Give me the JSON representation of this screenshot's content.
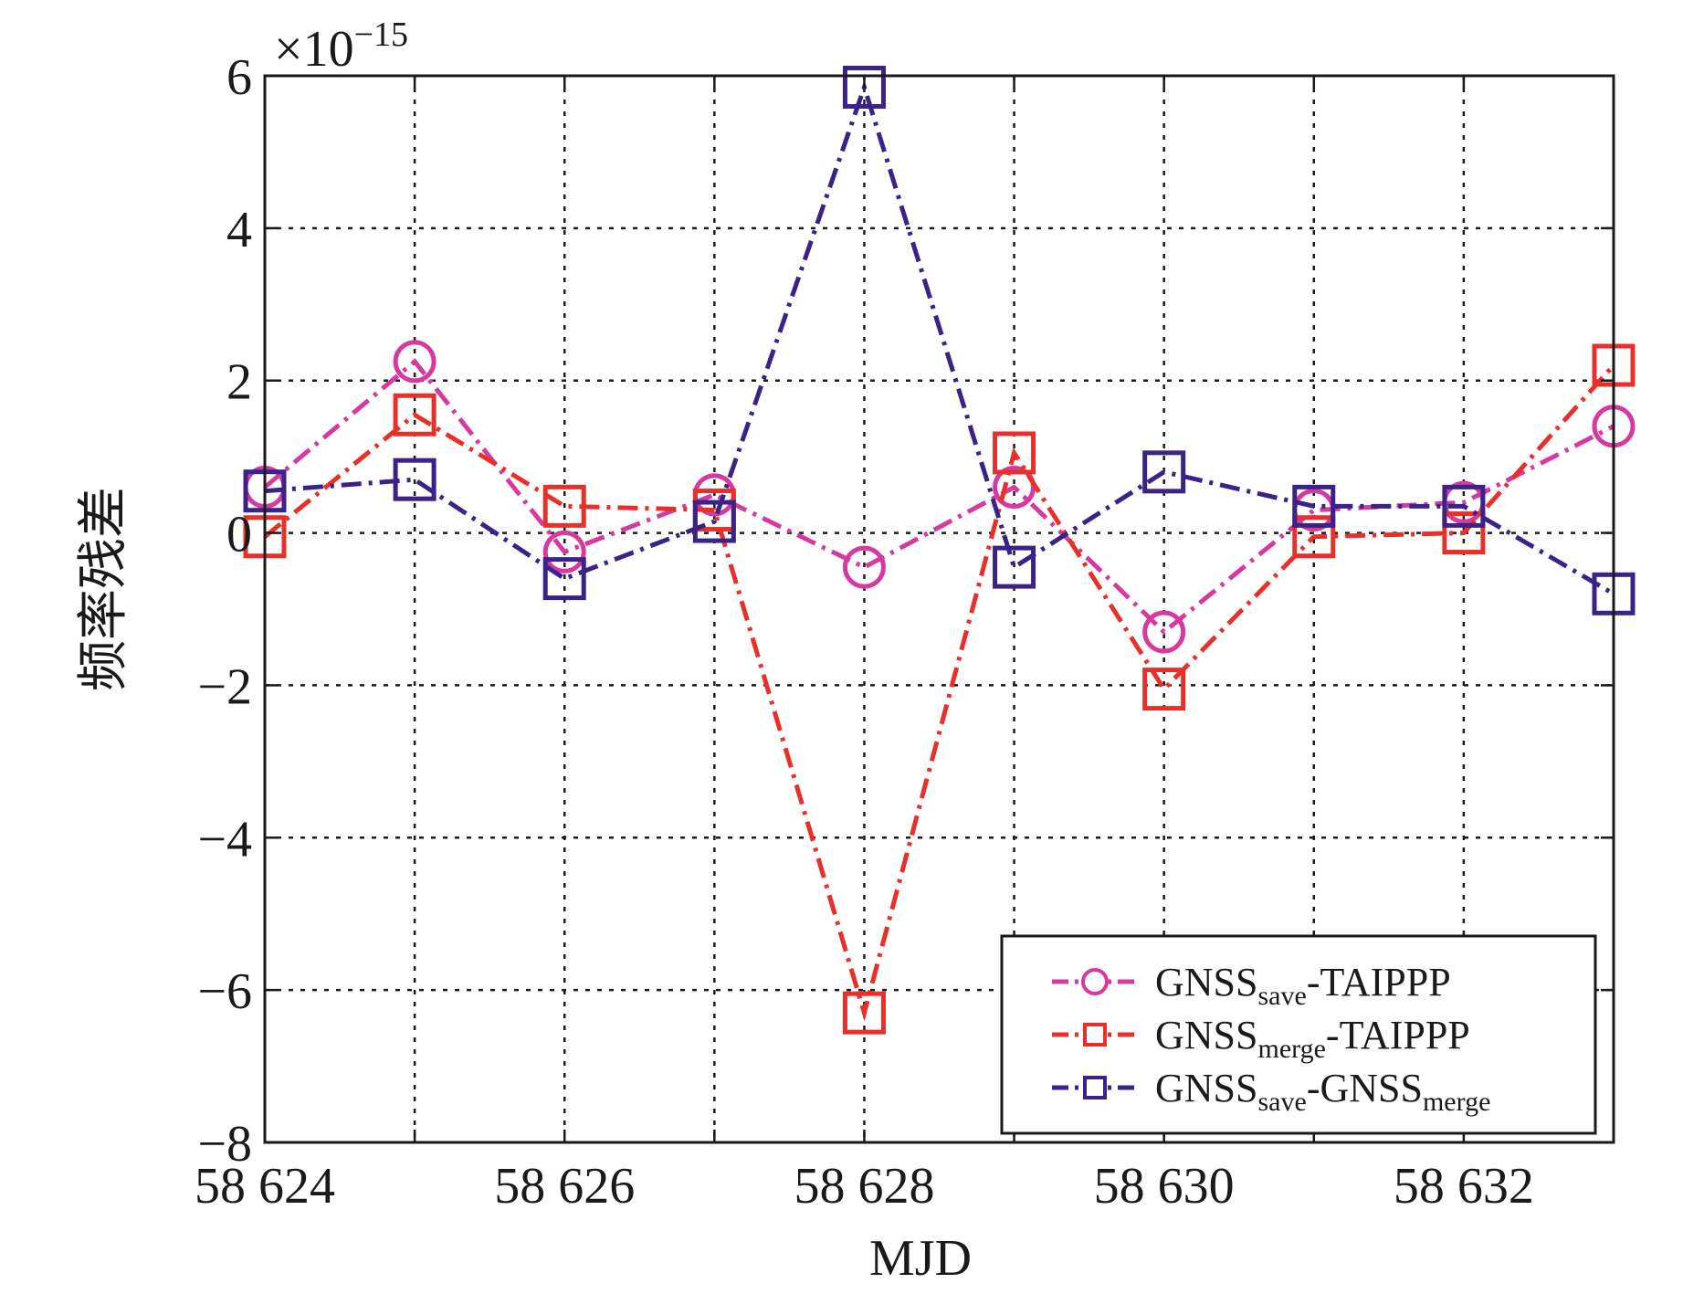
{
  "chart_data": {
    "type": "line",
    "title": "",
    "xlabel": "MJD",
    "ylabel": "频率残差",
    "y_multiplier": "×10",
    "y_multiplier_exp": "−15",
    "xlim": [
      58624,
      58633
    ],
    "ylim": [
      -8,
      6
    ],
    "x_ticks": [
      58624,
      58625,
      58626,
      58627,
      58628,
      58629,
      58630,
      58631,
      58632,
      58633
    ],
    "x_tick_labels": [
      "58 624",
      "",
      "58 626",
      "",
      "58 628",
      "",
      "58 630",
      "",
      "58 632",
      ""
    ],
    "y_ticks": [
      -8,
      -6,
      -4,
      -2,
      0,
      2,
      4,
      6
    ],
    "y_tick_labels": [
      "−8",
      "−6",
      "−4",
      "−2",
      "0",
      "2",
      "4",
      "6"
    ],
    "grid": true,
    "legend_position": "bottom-right",
    "x": [
      58624,
      58625,
      58626,
      58627,
      58628,
      58629,
      58630,
      58631,
      58632,
      58633
    ],
    "series": [
      {
        "label_main": "GNSS",
        "label_sub": "save",
        "label_rest": "-TAIPPP",
        "color": "#d63aa0",
        "marker": "circle",
        "values": [
          0.6,
          2.25,
          -0.25,
          0.5,
          -0.45,
          0.6,
          -1.3,
          0.3,
          0.4,
          1.4
        ]
      },
      {
        "label_main": "GNSS",
        "label_sub": "merge",
        "label_rest": "-TAIPPP",
        "color": "#e8302a",
        "marker": "square",
        "values": [
          -0.05,
          1.55,
          0.35,
          0.3,
          -6.3,
          1.05,
          -2.05,
          -0.05,
          0.0,
          2.2
        ]
      },
      {
        "label_main": "GNSS",
        "label_sub": "save",
        "label_rest": "-GNSS",
        "label_sub2": "merge",
        "color": "#3b2288",
        "marker": "square",
        "values": [
          0.55,
          0.7,
          -0.6,
          0.15,
          5.85,
          -0.45,
          0.8,
          0.35,
          0.35,
          -0.8
        ]
      }
    ]
  }
}
